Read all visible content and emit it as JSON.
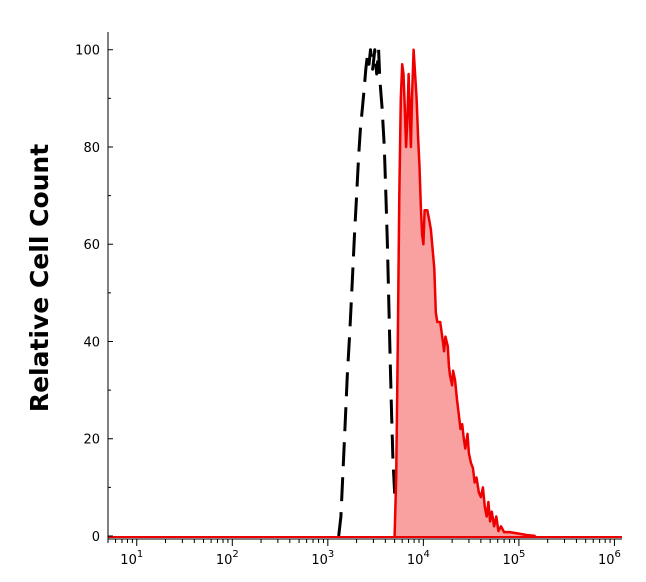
{
  "chart_data": {
    "type": "area",
    "title": "",
    "xlabel": "",
    "ylabel": "Relative Cell Count",
    "xscale": "log",
    "xlim": [
      5,
      1200000
    ],
    "ylim": [
      0,
      102
    ],
    "x_ticks": [
      {
        "base": "10",
        "exp": "1",
        "value": 10
      },
      {
        "base": "10",
        "exp": "2",
        "value": 100
      },
      {
        "base": "10",
        "exp": "3",
        "value": 1000
      },
      {
        "base": "10",
        "exp": "4",
        "value": 10000
      },
      {
        "base": "10",
        "exp": "5",
        "value": 100000
      },
      {
        "base": "10",
        "exp": "6",
        "value": 1000000
      }
    ],
    "y_ticks": [
      {
        "label": "0",
        "value": 0
      },
      {
        "label": "20",
        "value": 20
      },
      {
        "label": "40",
        "value": 40
      },
      {
        "label": "60",
        "value": 60
      },
      {
        "label": "80",
        "value": 80
      },
      {
        "label": "100",
        "value": 100
      }
    ],
    "grid": false,
    "legend": "none",
    "series": [
      {
        "style": "dashed",
        "color": "#000000",
        "fill": "none",
        "points": [
          [
            1300,
            0
          ],
          [
            1370,
            4
          ],
          [
            1430,
            12
          ],
          [
            1500,
            21
          ],
          [
            1600,
            33
          ],
          [
            1700,
            42
          ],
          [
            1800,
            52
          ],
          [
            1900,
            62
          ],
          [
            2000,
            70
          ],
          [
            2100,
            78
          ],
          [
            2200,
            84
          ],
          [
            2300,
            88
          ],
          [
            2400,
            92
          ],
          [
            2500,
            96
          ],
          [
            2600,
            99
          ],
          [
            2700,
            97
          ],
          [
            2800,
            100
          ],
          [
            2950,
            96
          ],
          [
            3100,
            100
          ],
          [
            3250,
            95
          ],
          [
            3400,
            100
          ],
          [
            3500,
            94
          ],
          [
            3700,
            88
          ],
          [
            3900,
            80
          ],
          [
            4050,
            70
          ],
          [
            4200,
            60
          ],
          [
            4350,
            48
          ],
          [
            4500,
            36
          ],
          [
            4650,
            25
          ],
          [
            4800,
            16
          ],
          [
            5000,
            9
          ],
          [
            5300,
            5
          ],
          [
            5700,
            3
          ],
          [
            6200,
            2
          ],
          [
            6700,
            1
          ],
          [
            7300,
            0
          ]
        ]
      },
      {
        "style": "solid",
        "color": "#ee0000",
        "fill": "#f9a0a0",
        "points": [
          [
            5000,
            0
          ],
          [
            5200,
            12
          ],
          [
            5400,
            40
          ],
          [
            5600,
            70
          ],
          [
            5800,
            90
          ],
          [
            6000,
            97
          ],
          [
            6200,
            95
          ],
          [
            6400,
            88
          ],
          [
            6600,
            80
          ],
          [
            6800,
            86
          ],
          [
            7000,
            95
          ],
          [
            7200,
            88
          ],
          [
            7400,
            80
          ],
          [
            7600,
            90
          ],
          [
            7900,
            100
          ],
          [
            8200,
            95
          ],
          [
            8500,
            90
          ],
          [
            8800,
            82
          ],
          [
            9100,
            76
          ],
          [
            9400,
            68
          ],
          [
            9700,
            62
          ],
          [
            10000,
            60
          ],
          [
            10300,
            67
          ],
          [
            11000,
            67
          ],
          [
            11500,
            65
          ],
          [
            12000,
            63
          ],
          [
            12500,
            59
          ],
          [
            13000,
            55
          ],
          [
            13500,
            46
          ],
          [
            14000,
            44
          ],
          [
            15000,
            44
          ],
          [
            16000,
            40
          ],
          [
            16500,
            38
          ],
          [
            17000,
            41
          ],
          [
            18000,
            39
          ],
          [
            18500,
            35
          ],
          [
            19000,
            33
          ],
          [
            20000,
            31
          ],
          [
            20500,
            34
          ],
          [
            21500,
            32
          ],
          [
            22500,
            28
          ],
          [
            23500,
            25
          ],
          [
            24500,
            22
          ],
          [
            25500,
            23
          ],
          [
            26500,
            20
          ],
          [
            27500,
            18
          ],
          [
            29000,
            21
          ],
          [
            30000,
            17
          ],
          [
            31500,
            15
          ],
          [
            33000,
            14
          ],
          [
            34500,
            11
          ],
          [
            36000,
            12
          ],
          [
            38000,
            9
          ],
          [
            40000,
            8
          ],
          [
            42000,
            10
          ],
          [
            44000,
            6
          ],
          [
            46000,
            4
          ],
          [
            48000,
            7
          ],
          [
            50000,
            3
          ],
          [
            52000,
            5
          ],
          [
            55000,
            2
          ],
          [
            58000,
            4
          ],
          [
            61000,
            1
          ],
          [
            65000,
            2
          ],
          [
            70000,
            0.8
          ],
          [
            80000,
            0.8
          ],
          [
            100000,
            0.5
          ],
          [
            120000,
            0.2
          ],
          [
            150000,
            0
          ]
        ]
      }
    ]
  }
}
